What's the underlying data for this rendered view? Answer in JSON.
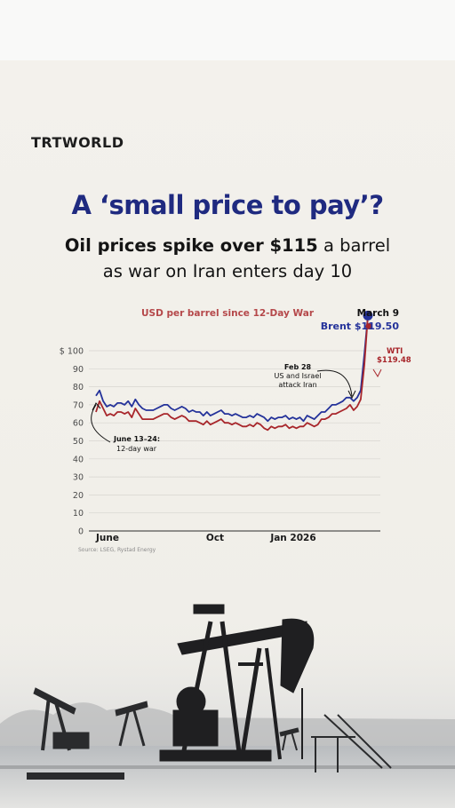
{
  "brand": {
    "logo_text": "TRTWORLD"
  },
  "headline": {
    "title": "A ‘small price to pay’?",
    "subtitle_bold": "Oil prices spike over $115",
    "subtitle_rest1": " a barrel",
    "subtitle_line2": "as war on Iran enters day 10"
  },
  "chart_data": {
    "type": "line",
    "title": "USD per barrel since 12-Day War",
    "xlabel": "",
    "ylabel": "$",
    "ylim": [
      0,
      100
    ],
    "yticks": [
      "$ 100",
      "90",
      "80",
      "70",
      "60",
      "50",
      "40",
      "30",
      "20",
      "10",
      "0"
    ],
    "ytick_values": [
      100,
      90,
      80,
      70,
      60,
      50,
      40,
      30,
      20,
      10,
      0
    ],
    "xticks": [
      "June",
      "Oct",
      "Jan 2026"
    ],
    "xtick_positions": [
      0,
      120,
      210
    ],
    "x_range": [
      0,
      280
    ],
    "grid": true,
    "series": [
      {
        "name": "Brent",
        "color": "#24329a",
        "values": [
          75,
          78,
          72,
          69,
          70,
          69,
          71,
          71,
          70,
          72,
          69,
          73,
          70,
          68,
          67,
          67,
          67,
          68,
          69,
          70,
          70,
          68,
          67,
          68,
          69,
          68,
          66,
          67,
          66,
          66,
          64,
          66,
          64,
          65,
          66,
          67,
          65,
          65,
          64,
          65,
          64,
          63,
          63,
          64,
          63,
          65,
          64,
          63,
          61,
          63,
          62,
          63,
          63,
          64,
          62,
          63,
          62,
          63,
          61,
          64,
          63,
          62,
          64,
          66,
          66,
          68,
          70,
          70,
          71,
          72,
          74,
          74,
          72,
          74,
          78,
          98,
          119.5
        ],
        "x_step": 3.737
      },
      {
        "name": "WTI",
        "color": "#a8262b",
        "values": [
          66,
          72,
          68,
          64,
          65,
          64,
          66,
          66,
          65,
          66,
          63,
          68,
          65,
          62,
          62,
          62,
          62,
          63,
          64,
          65,
          65,
          63,
          62,
          63,
          64,
          63,
          61,
          61,
          61,
          60,
          59,
          61,
          59,
          60,
          61,
          62,
          60,
          60,
          59,
          60,
          59,
          58,
          58,
          59,
          58,
          60,
          59,
          57,
          56,
          58,
          57,
          58,
          58,
          59,
          57,
          58,
          57,
          58,
          58,
          60,
          59,
          58,
          59,
          62,
          62,
          63,
          65,
          65,
          66,
          67,
          68,
          70,
          67,
          69,
          73,
          92,
          119.48
        ],
        "x_step": 3.737
      }
    ],
    "annotations": [
      {
        "text_top": "March 9",
        "text_bottom": "Brent $119.50",
        "series": "Brent"
      },
      {
        "text_top": "WTI",
        "text_bottom": "$119.48",
        "series": "WTI"
      },
      {
        "text_top": "Feb 28",
        "text_mid": "US and Israel",
        "text_bottom": "attack Iran"
      },
      {
        "text_top": "June 13–24:",
        "text_bottom": "12-day war"
      }
    ],
    "source": "Source: LSEG, Rystad Energy"
  }
}
